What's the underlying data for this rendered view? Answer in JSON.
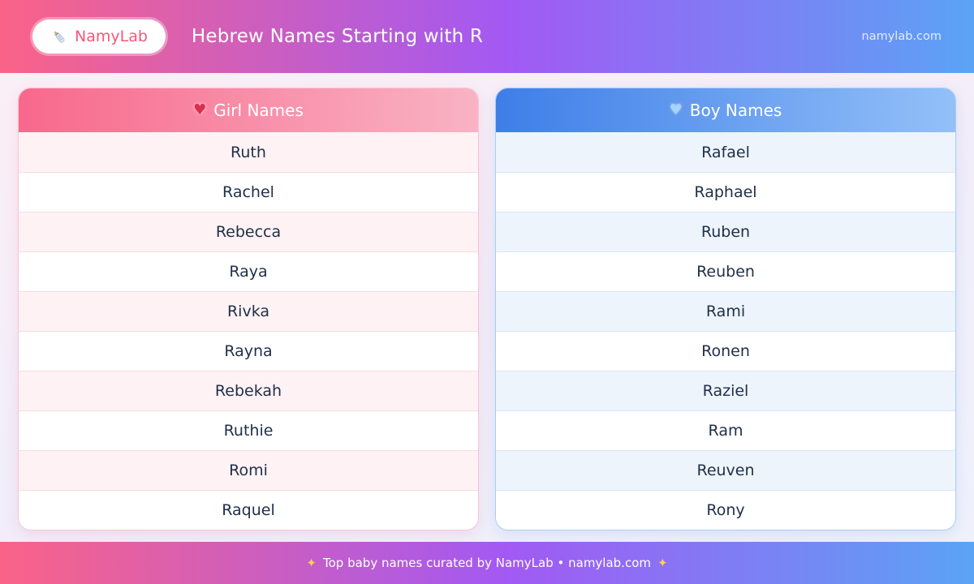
{
  "header": {
    "brand": "NamyLab",
    "title": "Hebrew Names Starting with R",
    "site": "namylab.com"
  },
  "tables": {
    "girls": {
      "title": "Girl Names",
      "heart": "♥",
      "names": [
        "Ruth",
        "Rachel",
        "Rebecca",
        "Raya",
        "Rivka",
        "Rayna",
        "Rebekah",
        "Ruthie",
        "Romi",
        "Raquel"
      ]
    },
    "boys": {
      "title": "Boy Names",
      "heart": "♥",
      "names": [
        "Rafael",
        "Raphael",
        "Ruben",
        "Reuben",
        "Rami",
        "Ronen",
        "Raziel",
        "Ram",
        "Reuven",
        "Rony"
      ]
    }
  },
  "footer": {
    "sparkle": "✦",
    "text": "Top baby names curated by NamyLab • namylab.com"
  },
  "colors": {
    "gradient_pink": "#fa6387",
    "gradient_purple": "#a259f3",
    "gradient_blue": "#5ba3f5",
    "brand_text": "#f5587a",
    "girl_header_left": "#f8688c",
    "girl_header_right": "#f9b3c4",
    "girl_row_tint": "#fef2f4",
    "boy_header_left": "#3e7ee8",
    "boy_header_right": "#93c0f8",
    "boy_row_tint": "#edf4fc",
    "name_text": "#20304a"
  }
}
